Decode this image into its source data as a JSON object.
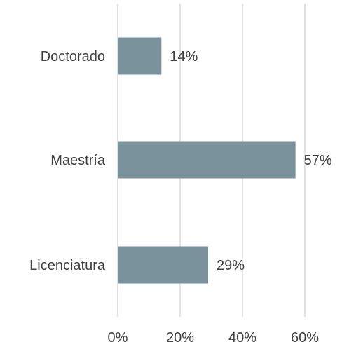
{
  "chart_data": {
    "type": "bar",
    "orientation": "horizontal",
    "title": "",
    "xlabel": "",
    "ylabel": "",
    "categories": [
      "Doctorado",
      "Maestría",
      "Licenciatura"
    ],
    "values": [
      14,
      57,
      29
    ],
    "data_labels": [
      "14%",
      "57%",
      "29%"
    ],
    "x_ticks": [
      0,
      20,
      40,
      60
    ],
    "x_tick_labels": [
      "0%",
      "20%",
      "40%",
      "60%"
    ],
    "xlim": [
      0,
      60
    ],
    "grid": "vertical",
    "legend": "none",
    "colors": {
      "bar": "#7a929c",
      "grid": "#d9d9d9",
      "text": "#404040"
    }
  }
}
